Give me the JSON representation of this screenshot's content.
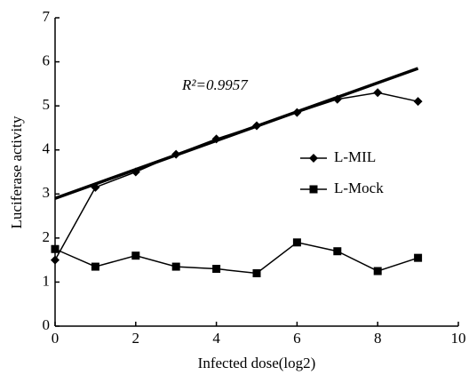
{
  "chart_data": {
    "type": "line",
    "xlabel": "Infected dose(log2)",
    "ylabel": "Luciferase activity",
    "annotation": "R²=0.9957",
    "x": [
      0,
      1,
      2,
      3,
      4,
      5,
      6,
      7,
      8,
      9
    ],
    "series": [
      {
        "name": "L-MIL",
        "color": "#000000",
        "marker": "diamond",
        "values": [
          1.5,
          3.15,
          3.5,
          3.9,
          4.25,
          4.55,
          4.85,
          5.15,
          5.3,
          5.1
        ]
      },
      {
        "name": "L-Mock",
        "color": "#000000",
        "marker": "square",
        "values": [
          1.75,
          1.35,
          1.6,
          1.35,
          1.3,
          1.2,
          1.9,
          1.7,
          1.25,
          1.55
        ]
      }
    ],
    "trendline": {
      "x": [
        0,
        9
      ],
      "values": [
        2.9,
        5.85
      ]
    },
    "xlim": [
      0,
      10
    ],
    "xticks": [
      0,
      2,
      4,
      6,
      8,
      10
    ],
    "ylim": [
      0,
      7
    ],
    "yticks": [
      0,
      1,
      2,
      3,
      4,
      5,
      6,
      7
    ],
    "grid": false,
    "legend": "right"
  }
}
